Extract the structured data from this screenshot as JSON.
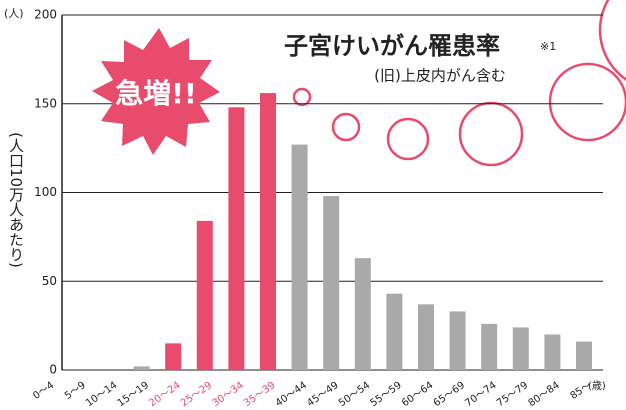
{
  "chart_data": {
    "type": "bar",
    "title": "子宮けいがん罹患率",
    "title_note": "※1",
    "subtitle": "(旧)上皮内がん含む",
    "callout": "急増!!",
    "y_unit": "(人)",
    "y_label": "(人口10万人あたり)",
    "x_unit": "(歳)",
    "categories": [
      "0〜4",
      "5〜9",
      "10〜14",
      "15〜19",
      "20〜24",
      "25〜29",
      "30〜34",
      "35〜39",
      "40〜44",
      "45〜49",
      "50〜54",
      "55〜59",
      "60〜64",
      "65〜69",
      "70〜74",
      "75〜79",
      "80〜84",
      "85〜"
    ],
    "values": [
      0,
      0,
      0,
      2,
      15,
      84,
      148,
      156,
      127,
      98,
      63,
      43,
      37,
      33,
      26,
      24,
      20,
      16
    ],
    "colors": [
      "#a9a9a9",
      "#a9a9a9",
      "#a9a9a9",
      "#a9a9a9",
      "#e94b6d",
      "#e94b6d",
      "#e94b6d",
      "#e94b6d",
      "#a9a9a9",
      "#a9a9a9",
      "#a9a9a9",
      "#a9a9a9",
      "#a9a9a9",
      "#a9a9a9",
      "#a9a9a9",
      "#a9a9a9",
      "#a9a9a9",
      "#a9a9a9"
    ],
    "label_colors": [
      "#222",
      "#222",
      "#222",
      "#222",
      "#e94b6d",
      "#e94b6d",
      "#e94b6d",
      "#e94b6d",
      "#222",
      "#222",
      "#222",
      "#222",
      "#222",
      "#222",
      "#222",
      "#222",
      "#222",
      "#222"
    ],
    "ylim": [
      0,
      200
    ],
    "yticks": [
      0,
      50,
      100,
      150,
      200
    ],
    "grid": true
  }
}
